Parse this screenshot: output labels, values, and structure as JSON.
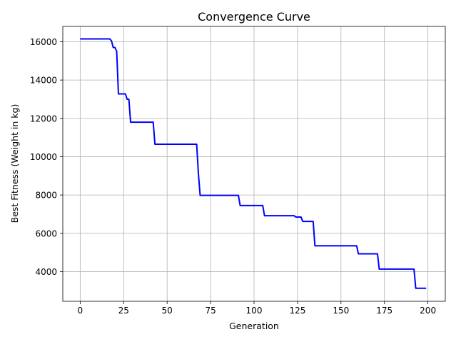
{
  "chart_data": {
    "type": "line",
    "title": "Convergence Curve",
    "xlabel": "Generation",
    "ylabel": "Best Fitness (Weight in kg)",
    "xlim": [
      -10,
      210
    ],
    "ylim": [
      2450,
      16800
    ],
    "xticks": [
      0,
      25,
      50,
      75,
      100,
      125,
      150,
      175,
      200
    ],
    "yticks": [
      4000,
      6000,
      8000,
      10000,
      12000,
      14000,
      16000
    ],
    "grid": true,
    "series": [
      {
        "color": "#0000ff",
        "x": [
          0,
          17,
          18,
          19,
          20,
          21,
          22,
          26,
          27,
          28,
          29,
          42,
          43,
          67,
          68,
          69,
          91,
          92,
          105,
          106,
          123,
          124,
          127,
          128,
          134,
          135,
          159,
          160,
          171,
          172,
          192,
          193,
          199
        ],
        "y": [
          16150,
          16150,
          16050,
          15700,
          15700,
          15500,
          13280,
          13280,
          13000,
          13000,
          11800,
          11800,
          10650,
          10650,
          9100,
          7980,
          7980,
          7450,
          7450,
          6920,
          6920,
          6850,
          6850,
          6620,
          6620,
          5350,
          5350,
          4930,
          4930,
          4130,
          4130,
          3130,
          3130
        ]
      }
    ]
  }
}
